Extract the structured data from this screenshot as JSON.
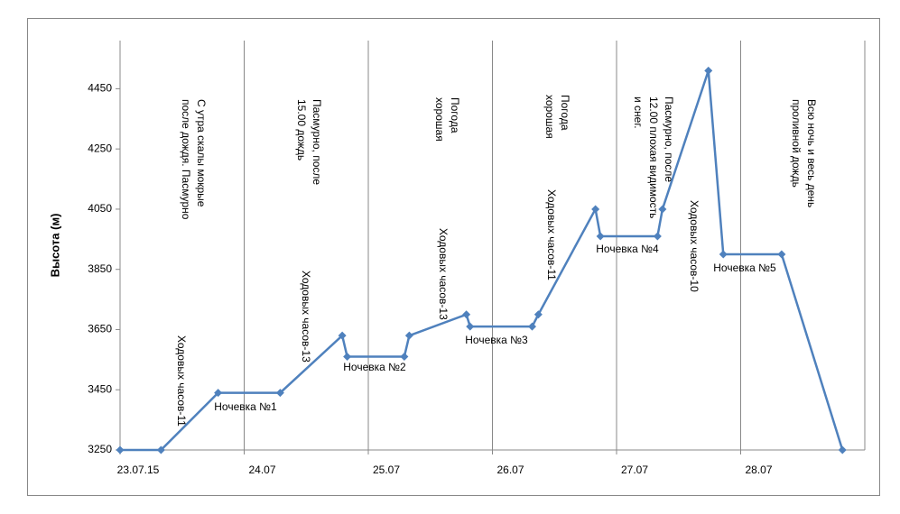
{
  "chart_data": {
    "type": "line",
    "y_label": "Высота (м)",
    "color": "#4f81bd",
    "xlim": [
      0,
      6
    ],
    "xticks": [
      {
        "value": 0,
        "label": "23.07.15"
      },
      {
        "value": 1,
        "label": "24.07"
      },
      {
        "value": 2,
        "label": "25.07"
      },
      {
        "value": 3,
        "label": "26.07"
      },
      {
        "value": 4,
        "label": "27.07"
      },
      {
        "value": 5,
        "label": "28.07"
      }
    ],
    "ylim": [
      3250,
      4610
    ],
    "yticks": [
      3250,
      3450,
      3650,
      3850,
      4050,
      4250,
      4450
    ],
    "grid": true,
    "x": [
      0,
      0.33,
      0.79,
      1.29,
      1.79,
      1.83,
      2.29,
      2.33,
      2.79,
      2.82,
      3.32,
      3.37,
      3.83,
      3.87,
      4.33,
      4.37,
      4.74,
      4.86,
      5.33,
      5.82
    ],
    "values": [
      3250,
      3250,
      3440,
      3440,
      3630,
      3560,
      3560,
      3630,
      3700,
      3660,
      3660,
      3700,
      4050,
      3960,
      3960,
      4050,
      4510,
      3900,
      3900,
      3250
    ],
    "annotations": [
      [
        "С утра скалы мокрые",
        "после дождя. Пасмурно"
      ],
      [
        "Ходовых часов-11"
      ],
      [
        "Ночевка №1"
      ],
      [
        "Пасмурно, после",
        "15.00 дождь"
      ],
      [
        "Ходовых часов-13"
      ],
      [
        "Ночевка №2"
      ],
      [
        "Погода",
        "хорошая"
      ],
      [
        "Ходовых часов-13"
      ],
      [
        "Ночевка №3"
      ],
      [
        "Погода",
        "хорошая"
      ],
      [
        "Ходовых часов-11"
      ],
      [
        "Ночевка №4"
      ],
      [
        "Пасмурно, после",
        "12.00 плохая видимость",
        "и снег."
      ],
      [
        "Ходовых часов-10"
      ],
      [
        "Ночевка №5"
      ],
      [
        "Всю ночь и весь день",
        "проливной дождь"
      ]
    ]
  }
}
